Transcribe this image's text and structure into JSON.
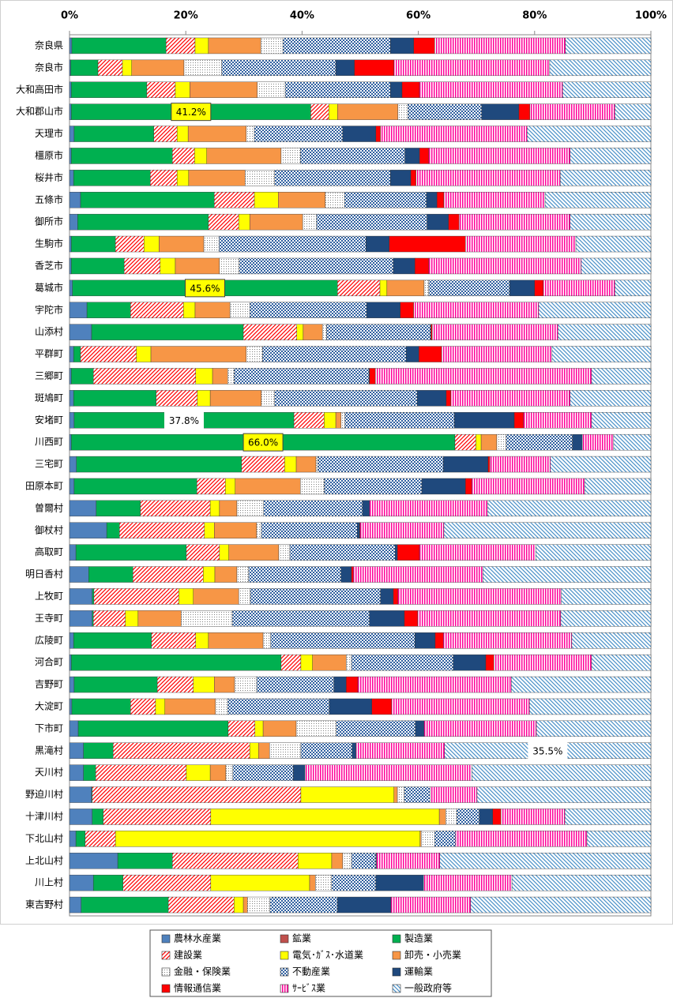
{
  "chart_data": {
    "type": "stacked_barh",
    "categories": [
      "奈良県",
      "奈良市",
      "大和高田市",
      "大和郡山市",
      "天理市",
      "橿原市",
      "桜井市",
      "五條市",
      "御所市",
      "生駒市",
      "香芝市",
      "葛城市",
      "宇陀市",
      "山添村",
      "平群町",
      "三郷町",
      "斑鳩町",
      "安堵町",
      "川西町",
      "三宅町",
      "田原本町",
      "曽爾村",
      "御杖村",
      "高取町",
      "明日香村",
      "上牧町",
      "王寺町",
      "広陵町",
      "河合町",
      "吉野町",
      "大淀町",
      "下市町",
      "黒滝村",
      "天川村",
      "野迫川村",
      "十津川村",
      "下北山村",
      "上北山村",
      "川上村",
      "東吉野村"
    ],
    "xlim": [
      0,
      100
    ],
    "xticks": [
      {
        "value": 0,
        "label": "0%"
      },
      {
        "value": 20,
        "label": "20%"
      },
      {
        "value": 40,
        "label": "40%"
      },
      {
        "value": 60,
        "label": "60%"
      },
      {
        "value": 80,
        "label": "80%"
      },
      {
        "value": 100,
        "label": "100%"
      }
    ],
    "grid": false,
    "legend": "bottom",
    "series": [
      {
        "name": "農林水産業",
        "color": "#4f81bd",
        "values": [
          0.4,
          0.2,
          0.3,
          0.3,
          0.8,
          0.3,
          0.7,
          1.9,
          1.4,
          0.3,
          0.3,
          0.5,
          3.0,
          3.8,
          0.7,
          0.3,
          0.7,
          0.8,
          0.3,
          1.2,
          0.8,
          4.6,
          6.4,
          1.1,
          3.3,
          3.9,
          3.9,
          0.7,
          0.3,
          0.8,
          0.4,
          1.5,
          2.4,
          2.4,
          3.8,
          3.9,
          1.1,
          8.3,
          4.1,
          2.0
        ]
      },
      {
        "name": "鉱業",
        "color": "#c0504d",
        "values": [
          0,
          0,
          0,
          0,
          0,
          0,
          0,
          0,
          0,
          0,
          0,
          0,
          0,
          0,
          0,
          0,
          0,
          0,
          0,
          0,
          0,
          0,
          0,
          0,
          0,
          0,
          0,
          0,
          0,
          0,
          0,
          0,
          0,
          0,
          0,
          0,
          0,
          0,
          0,
          0
        ]
      },
      {
        "name": "製造業",
        "color": "#00b050",
        "values": [
          16.2,
          4.7,
          13.0,
          41.2,
          13.7,
          17.4,
          13.2,
          23.0,
          22.5,
          7.6,
          9.1,
          45.6,
          7.5,
          26.1,
          1.2,
          3.8,
          14.2,
          37.8,
          66.0,
          28.4,
          21.1,
          7.6,
          2.2,
          19.0,
          7.6,
          0.3,
          0.2,
          13.4,
          36.1,
          14.3,
          10.1,
          25.8,
          5.1,
          2.1,
          0.1,
          1.9,
          1.6,
          9.4,
          5.1,
          15.0
        ],
        "value_labels": [
          null,
          null,
          null,
          "41.2%",
          null,
          null,
          null,
          null,
          null,
          null,
          null,
          "45.6%",
          null,
          null,
          null,
          null,
          null,
          "37.8%",
          "66.0%",
          null,
          null,
          null,
          null,
          null,
          null,
          null,
          null,
          null,
          null,
          null,
          null,
          null,
          null,
          null,
          null,
          null,
          null,
          null,
          null,
          null
        ]
      },
      {
        "name": "建設業",
        "color": "#ff0000",
        "pattern": "hatch",
        "values": [
          5.0,
          4.2,
          4.9,
          3.1,
          4.0,
          3.8,
          4.6,
          6.9,
          5.2,
          4.9,
          6.2,
          7.3,
          9.1,
          9.2,
          9.6,
          17.6,
          7.1,
          5.2,
          3.6,
          7.4,
          4.9,
          12.0,
          14.6,
          5.7,
          12.1,
          14.6,
          5.5,
          7.6,
          3.4,
          6.2,
          4.3,
          4.6,
          23.5,
          15.6,
          35.9,
          18.5,
          5.2,
          21.6,
          15.1,
          11.3
        ]
      },
      {
        "name": "電気･ｶﾞｽ･水道業",
        "color": "#ffff00",
        "values": [
          2.3,
          1.6,
          2.5,
          1.5,
          1.9,
          2.1,
          2.0,
          4.1,
          1.9,
          2.6,
          2.6,
          1.2,
          2.0,
          1.1,
          2.5,
          2.9,
          2.2,
          2.0,
          0.9,
          2.0,
          1.7,
          1.6,
          1.7,
          1.6,
          2.0,
          2.5,
          2.2,
          2.2,
          2.0,
          3.6,
          1.6,
          1.4,
          1.5,
          4.1,
          16.0,
          39.3,
          52.4,
          5.8,
          17.0,
          1.6
        ]
      },
      {
        "name": "卸売・小売業",
        "color": "#f79646",
        "values": [
          9.0,
          9.0,
          11.6,
          10.4,
          10.0,
          12.8,
          9.7,
          8.1,
          9.1,
          7.7,
          7.6,
          6.4,
          6.0,
          3.3,
          16.4,
          2.6,
          8.8,
          0.9,
          2.7,
          3.4,
          11.2,
          3.0,
          7.3,
          8.6,
          3.8,
          7.8,
          7.4,
          9.4,
          5.8,
          3.5,
          8.7,
          5.7,
          1.9,
          2.7,
          0.6,
          1.1,
          0.2,
          1.9,
          1.0,
          0.7
        ]
      },
      {
        "name": "金融・保険業",
        "color": "#808080",
        "pattern": "dots",
        "values": [
          3.8,
          6.5,
          4.8,
          1.7,
          1.4,
          3.3,
          5.1,
          3.3,
          2.4,
          2.6,
          3.4,
          0.8,
          3.4,
          0.7,
          2.8,
          1.1,
          2.3,
          0.7,
          1.6,
          0.3,
          4.1,
          4.6,
          0.8,
          1.9,
          2.0,
          2.0,
          8.8,
          1.3,
          0.9,
          3.8,
          2.1,
          6.9,
          5.4,
          1.2,
          1.2,
          1.9,
          2.3,
          1.5,
          2.8,
          3.9
        ]
      },
      {
        "name": "不動産業",
        "color": "#2f5f9f",
        "pattern": "checker",
        "values": [
          18.5,
          19.6,
          18.1,
          12.7,
          15.2,
          18.0,
          19.9,
          14.1,
          19.0,
          25.3,
          26.5,
          13.9,
          20.1,
          17.9,
          24.7,
          23.2,
          24.5,
          18.8,
          11.4,
          21.6,
          16.8,
          17.0,
          16.5,
          18.1,
          15.9,
          22.4,
          23.6,
          24.8,
          17.5,
          13.3,
          17.5,
          13.6,
          8.8,
          10.4,
          4.4,
          3.9,
          3.6,
          4.2,
          7.6,
          11.6
        ]
      },
      {
        "name": "運輸業",
        "color": "#1f497d",
        "values": [
          4.0,
          3.2,
          2.0,
          6.4,
          5.7,
          2.5,
          3.5,
          1.8,
          3.7,
          4.0,
          3.7,
          4.3,
          5.8,
          0.1,
          2.2,
          0.1,
          5.0,
          10.3,
          1.7,
          7.7,
          7.5,
          1.2,
          0.4,
          0.4,
          1.8,
          2.2,
          6.0,
          3.5,
          5.6,
          2.1,
          7.3,
          1.5,
          0.7,
          2.0,
          0,
          2.3,
          0,
          0.1,
          8.2,
          9.2
        ]
      },
      {
        "name": "情報通信業",
        "color": "#ff0000",
        "values": [
          3.6,
          6.8,
          3.0,
          1.9,
          0.8,
          1.6,
          0.9,
          1.2,
          1.8,
          13.1,
          2.4,
          1.5,
          2.3,
          0.2,
          3.9,
          1.0,
          0.8,
          1.6,
          0,
          0.3,
          1.1,
          0,
          0.1,
          3.8,
          0.3,
          0.8,
          2.3,
          1.4,
          1.4,
          2.0,
          3.4,
          0,
          0,
          0,
          0,
          1.4,
          0,
          0,
          0,
          0
        ]
      },
      {
        "name": "ｻｰﾋﾞｽ業",
        "color": "#ff0099",
        "pattern": "vstripe",
        "values": [
          22.5,
          26.8,
          24.6,
          14.6,
          25.2,
          24.3,
          24.8,
          17.4,
          19.1,
          19.0,
          26.2,
          12.3,
          21.5,
          21.6,
          19.0,
          37.2,
          20.5,
          11.7,
          5.4,
          10.4,
          19.4,
          20.3,
          14.4,
          20.0,
          22.3,
          28.1,
          24.6,
          22.1,
          16.8,
          26.4,
          23.7,
          19.3,
          15.2,
          28.7,
          8.1,
          11.0,
          22.6,
          10.9,
          15.2,
          13.7
        ]
      },
      {
        "name": "一般政府等",
        "color": "#4a90c8",
        "pattern": "backhatch",
        "values": [
          14.7,
          17.4,
          15.2,
          6.2,
          21.3,
          13.9,
          15.6,
          18.2,
          13.9,
          12.9,
          12.0,
          6.2,
          19.3,
          16.0,
          17.0,
          10.2,
          13.9,
          10.2,
          6.4,
          17.3,
          11.4,
          28.1,
          35.6,
          19.8,
          28.9,
          15.4,
          15.5,
          13.6,
          10.2,
          24.0,
          20.9,
          19.7,
          35.5,
          30.8,
          29.9,
          14.8,
          11.0,
          36.3,
          23.9,
          31.0
        ],
        "value_labels": [
          null,
          null,
          null,
          null,
          null,
          null,
          null,
          null,
          null,
          null,
          null,
          null,
          null,
          null,
          null,
          null,
          null,
          null,
          null,
          null,
          null,
          null,
          null,
          null,
          null,
          null,
          null,
          null,
          null,
          null,
          null,
          null,
          "35.5%",
          null,
          null,
          null,
          null,
          null,
          null,
          null
        ]
      }
    ]
  }
}
